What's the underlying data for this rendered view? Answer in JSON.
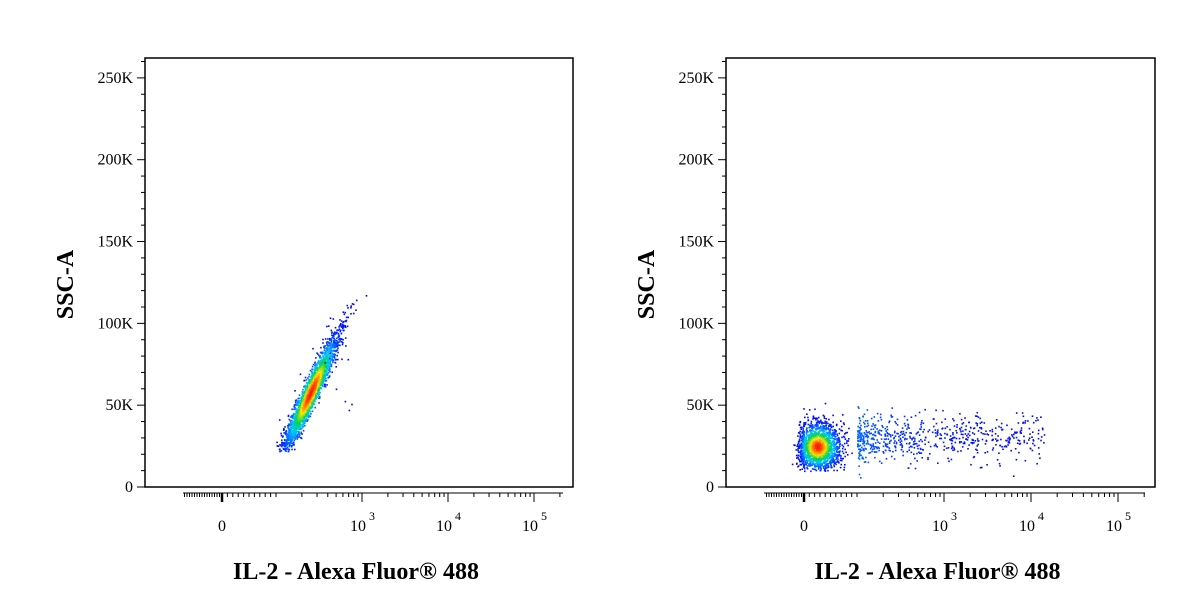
{
  "chart_data": [
    {
      "type": "scatter",
      "title": "",
      "xlabel": "IL-2 - Alexa Fluor® 488",
      "ylabel": "SSC-A",
      "x_scale": "biexponential",
      "xlim": [
        -150,
        200000
      ],
      "ylim": [
        0,
        262144
      ],
      "x_ticks": [
        {
          "value": 0,
          "label": "0"
        },
        {
          "value": 1000,
          "label": "10",
          "exp": "3"
        },
        {
          "value": 10000,
          "label": "10",
          "exp": "4"
        },
        {
          "value": 100000,
          "label": "10",
          "exp": "5"
        }
      ],
      "y_ticks": [
        {
          "value": 0,
          "label": "0"
        },
        {
          "value": 50000,
          "label": "50K"
        },
        {
          "value": 100000,
          "label": "100K"
        },
        {
          "value": 150000,
          "label": "150K"
        },
        {
          "value": 200000,
          "label": "200K"
        },
        {
          "value": 250000,
          "label": "250K"
        }
      ],
      "density_coloring": "pseudocolor (blue-cyan-green-yellow-red)",
      "series": [
        {
          "population": "main",
          "points": [
            [
              120,
              30000
            ],
            [
              300,
              70000
            ],
            [
              500,
              105000
            ],
            [
              200,
              50000
            ],
            [
              180,
              35000
            ],
            [
              350,
              85000
            ],
            [
              420,
              95000
            ],
            [
              250,
              60000
            ]
          ],
          "spread": "diagonal elongated cloud, x ≈ 100–700, y ≈ 25K–115K; densest near x ≈ 250, y ≈ 55K"
        }
      ]
    },
    {
      "type": "scatter",
      "title": "",
      "xlabel": "IL-2 - Alexa Fluor® 488",
      "ylabel": "SSC-A",
      "x_scale": "biexponential",
      "xlim": [
        -150,
        200000
      ],
      "ylim": [
        0,
        262144
      ],
      "x_ticks": [
        {
          "value": 0,
          "label": "0"
        },
        {
          "value": 1000,
          "label": "10",
          "exp": "3"
        },
        {
          "value": 10000,
          "label": "10",
          "exp": "4"
        },
        {
          "value": 100000,
          "label": "10",
          "exp": "5"
        }
      ],
      "y_ticks": [
        {
          "value": 0,
          "label": "0"
        },
        {
          "value": 50000,
          "label": "50K"
        },
        {
          "value": 100000,
          "label": "100K"
        },
        {
          "value": 150000,
          "label": "150K"
        },
        {
          "value": 200000,
          "label": "200K"
        },
        {
          "value": 250000,
          "label": "250K"
        }
      ],
      "density_coloring": "pseudocolor (blue-cyan-green-yellow-red)",
      "series": [
        {
          "population": "negative",
          "points": [
            [
              20,
              22000
            ],
            [
              40,
              25000
            ],
            [
              60,
              30000
            ],
            [
              10,
              18000
            ]
          ],
          "spread": "dense cluster near x ≈ 0–80, y ≈ 12K–45K"
        },
        {
          "population": "positive tail",
          "points": [
            [
              300,
              28000
            ],
            [
              1000,
              30000
            ],
            [
              3000,
              32000
            ],
            [
              8000,
              30000
            ],
            [
              15000,
              28000
            ]
          ],
          "spread": "sparse horizontal tail x ≈ 100–15000, y ≈ 15K–55K"
        }
      ]
    }
  ]
}
